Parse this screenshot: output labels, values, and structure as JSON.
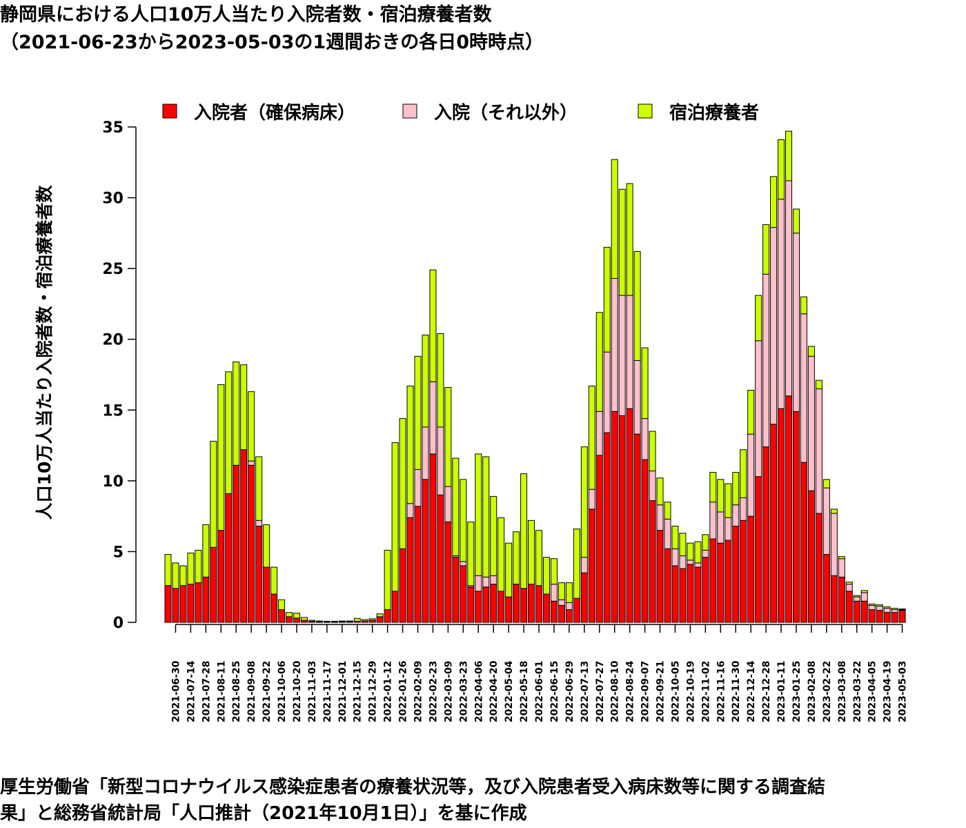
{
  "title_line1": "静岡県における人口10万人当たり入院者数・宿泊療養者数",
  "title_line2": "（2021-06-23から2023-05-03の1週間おきの各日0時時点）",
  "footer_line1": "厚生労働省「新型コロナウイルス感染症患者の療養状況等，及び入院患者受入病床数等に関する調査結",
  "footer_line2": "果」と総務省統計局「人口推計（2021年10月1日）」を基に作成",
  "chart_data": {
    "type": "bar",
    "stacked": true,
    "ylabel": "人口10万人当たり入院者数・宿泊療養者数",
    "ylim": [
      0,
      35
    ],
    "yticks": [
      0,
      5,
      10,
      15,
      20,
      25,
      30,
      35
    ],
    "legend_position": "top",
    "categories": [
      "2021-06-23",
      "2021-06-30",
      "2021-07-07",
      "2021-07-14",
      "2021-07-21",
      "2021-07-28",
      "2021-08-04",
      "2021-08-11",
      "2021-08-18",
      "2021-08-25",
      "2021-09-01",
      "2021-09-08",
      "2021-09-15",
      "2021-09-22",
      "2021-09-29",
      "2021-10-06",
      "2021-10-13",
      "2021-10-20",
      "2021-10-27",
      "2021-11-03",
      "2021-11-10",
      "2021-11-17",
      "2021-11-24",
      "2021-12-01",
      "2021-12-08",
      "2021-12-15",
      "2021-12-22",
      "2021-12-29",
      "2022-01-05",
      "2022-01-12",
      "2022-01-19",
      "2022-01-26",
      "2022-02-02",
      "2022-02-09",
      "2022-02-16",
      "2022-02-23",
      "2022-03-02",
      "2022-03-09",
      "2022-03-16",
      "2022-03-23",
      "2022-03-30",
      "2022-04-06",
      "2022-04-13",
      "2022-04-20",
      "2022-04-27",
      "2022-05-04",
      "2022-05-11",
      "2022-05-18",
      "2022-05-25",
      "2022-06-01",
      "2022-06-08",
      "2022-06-15",
      "2022-06-22",
      "2022-06-29",
      "2022-07-06",
      "2022-07-13",
      "2022-07-20",
      "2022-07-27",
      "2022-08-03",
      "2022-08-10",
      "2022-08-17",
      "2022-08-24",
      "2022-08-31",
      "2022-09-07",
      "2022-09-14",
      "2022-09-21",
      "2022-09-28",
      "2022-10-05",
      "2022-10-12",
      "2022-10-19",
      "2022-10-26",
      "2022-11-02",
      "2022-11-09",
      "2022-11-16",
      "2022-11-23",
      "2022-11-30",
      "2022-12-07",
      "2022-12-14",
      "2022-12-21",
      "2022-12-28",
      "2023-01-04",
      "2023-01-11",
      "2023-01-18",
      "2023-01-25",
      "2023-02-01",
      "2023-02-08",
      "2023-02-15",
      "2023-02-22",
      "2023-03-01",
      "2023-03-08",
      "2023-03-15",
      "2023-03-22",
      "2023-03-29",
      "2023-04-05",
      "2023-04-12",
      "2023-04-19",
      "2023-04-26",
      "2023-05-03"
    ],
    "xtick_labels": [
      "2021-06-30",
      "2021-07-14",
      "2021-07-28",
      "2021-08-11",
      "2021-08-25",
      "2021-09-08",
      "2021-09-22",
      "2021-10-06",
      "2021-10-20",
      "2021-11-03",
      "2021-11-17",
      "2021-12-01",
      "2021-12-15",
      "2021-12-29",
      "2022-01-12",
      "2022-01-26",
      "2022-02-09",
      "2022-02-23",
      "2022-03-09",
      "2022-03-23",
      "2022-04-06",
      "2022-04-20",
      "2022-05-04",
      "2022-05-18",
      "2022-06-01",
      "2022-06-15",
      "2022-06-29",
      "2022-07-13",
      "2022-07-27",
      "2022-08-10",
      "2022-08-24",
      "2022-09-07",
      "2022-09-21",
      "2022-10-05",
      "2022-10-19",
      "2022-11-02",
      "2022-11-16",
      "2022-11-30",
      "2022-12-14",
      "2022-12-28",
      "2023-01-11",
      "2023-01-25",
      "2023-02-08",
      "2023-02-22",
      "2023-03-08",
      "2023-03-22",
      "2023-04-05",
      "2023-04-19",
      "2023-05-03"
    ],
    "series": [
      {
        "name": "入院者（確保病床）",
        "color": "#ff0000",
        "values": [
          2.6,
          2.4,
          2.6,
          2.7,
          2.8,
          3.2,
          5.3,
          6.5,
          9.1,
          11.1,
          12.2,
          11.1,
          6.8,
          3.9,
          2.0,
          0.9,
          0.4,
          0.3,
          0.15,
          0.08,
          0.05,
          0.04,
          0.04,
          0.05,
          0.05,
          0.08,
          0.1,
          0.15,
          0.4,
          0.9,
          2.2,
          5.2,
          7.4,
          8.2,
          10.1,
          11.9,
          9.0,
          7.1,
          4.6,
          4.0,
          2.5,
          2.2,
          2.5,
          2.7,
          2.2,
          1.8,
          2.7,
          2.4,
          2.7,
          2.6,
          2.0,
          1.5,
          1.2,
          0.9,
          1.7,
          3.5,
          8.0,
          11.8,
          13.4,
          14.9,
          14.6,
          15.1,
          13.3,
          11.5,
          8.6,
          6.5,
          5.2,
          4.0,
          3.8,
          4.1,
          3.9,
          4.6,
          5.9,
          5.6,
          5.8,
          6.8,
          7.2,
          7.5,
          10.3,
          12.4,
          14.0,
          15.1,
          16.0,
          14.9,
          11.3,
          9.3,
          7.7,
          4.8,
          3.3,
          3.2,
          2.2,
          1.5,
          1.5,
          0.9,
          0.85,
          0.7,
          0.7,
          0.85
        ]
      },
      {
        "name": "入院（それ以外）",
        "color": "#ffc0cb",
        "values": [
          0,
          0,
          0,
          0,
          0,
          0,
          0,
          0,
          0,
          0,
          0,
          0.3,
          0.4,
          0,
          0,
          0,
          0,
          0,
          0,
          0,
          0,
          0,
          0,
          0,
          0,
          0,
          0,
          0,
          0,
          0,
          0,
          0,
          1.0,
          2.6,
          3.7,
          5.1,
          4.8,
          2.5,
          0.1,
          0.3,
          0.1,
          1.1,
          0.7,
          0.6,
          0,
          0,
          0,
          0,
          0,
          0,
          0,
          1.2,
          0.4,
          0.5,
          0,
          1.1,
          1.4,
          3.1,
          5.7,
          9.4,
          8.5,
          8.0,
          5.2,
          2.9,
          2.1,
          1.8,
          2.1,
          1.2,
          0.9,
          0.3,
          0.3,
          0.5,
          2.6,
          2.2,
          1.6,
          1.5,
          1.6,
          5.8,
          9.6,
          12.2,
          13.9,
          14.8,
          15.2,
          12.6,
          10.5,
          9.5,
          8.8,
          4.7,
          4.4,
          1.3,
          0.5,
          0.3,
          0.6,
          0.3,
          0.3,
          0.3,
          0.2,
          0.05
        ]
      },
      {
        "name": "宿泊療養者",
        "color": "#ccff00",
        "values": [
          2.2,
          1.8,
          1.4,
          2.2,
          2.3,
          3.7,
          7.5,
          10.3,
          8.6,
          7.3,
          6.0,
          4.9,
          4.5,
          3.0,
          1.9,
          0.7,
          0.3,
          0.35,
          0.2,
          0.07,
          0.05,
          0.04,
          0.04,
          0.05,
          0.05,
          0.2,
          0.1,
          0.1,
          0.2,
          4.2,
          10.5,
          9.2,
          8.3,
          8.0,
          6.5,
          7.9,
          6.6,
          7.0,
          6.9,
          5.8,
          4.5,
          8.6,
          8.5,
          5.6,
          5.2,
          3.8,
          3.7,
          8.1,
          4.5,
          3.9,
          2.6,
          1.8,
          1.2,
          1.4,
          4.9,
          7.8,
          7.3,
          7.0,
          7.4,
          8.4,
          7.5,
          7.9,
          7.7,
          5.0,
          2.8,
          1.9,
          1.2,
          1.6,
          1.6,
          1.2,
          1.5,
          1.1,
          2.1,
          2.3,
          2.4,
          2.3,
          3.4,
          3.1,
          3.2,
          3.5,
          3.6,
          4.2,
          3.5,
          1.7,
          1.2,
          0.7,
          0.6,
          0.6,
          0.3,
          0.15,
          0.15,
          0.1,
          0.15,
          0.1,
          0.1,
          0.1,
          0.1,
          0.05
        ]
      }
    ]
  }
}
